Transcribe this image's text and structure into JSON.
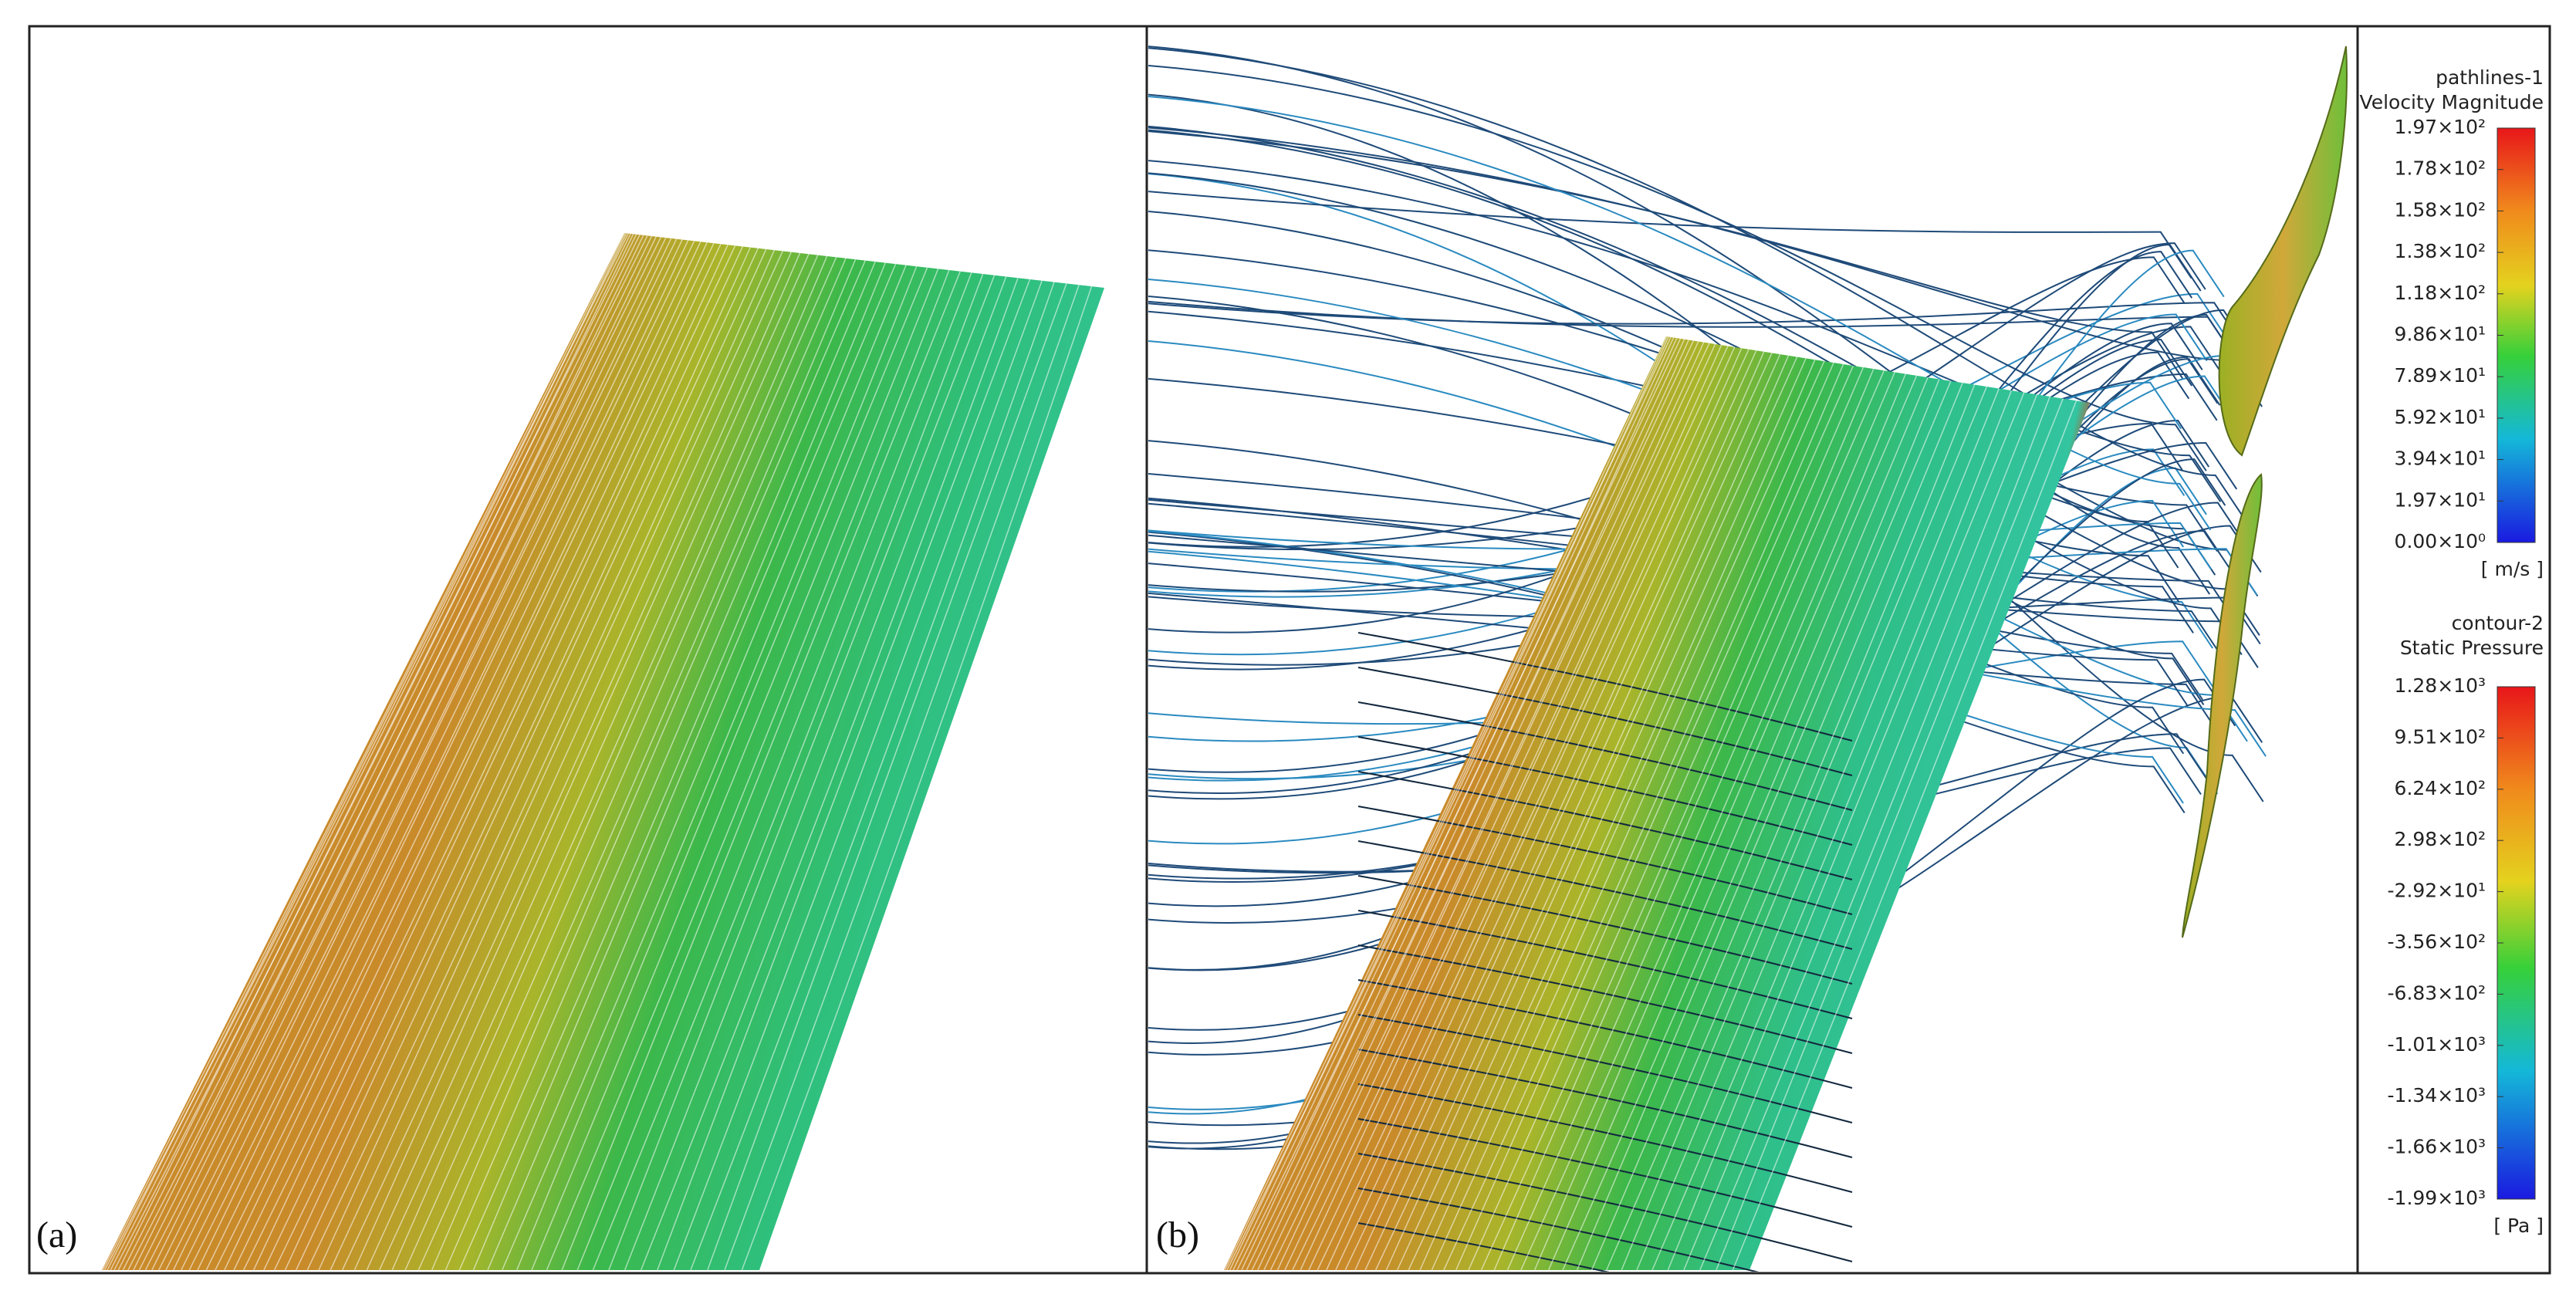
{
  "panels": [
    {
      "label": "(a)"
    },
    {
      "label": "(b)"
    }
  ],
  "legends": [
    {
      "title": [
        "pathlines-1",
        "Velocity Magnitude"
      ],
      "unit": "[ m/s ]",
      "ticks": [
        "1.97×10²",
        "1.78×10²",
        "1.58×10²",
        "1.38×10²",
        "1.18×10²",
        "9.86×10¹",
        "7.89×10¹",
        "5.92×10¹",
        "3.94×10¹",
        "1.97×10¹",
        "0.00×10⁰"
      ]
    },
    {
      "title": [
        "contour-2",
        "Static Pressure"
      ],
      "unit": "[ Pa ]",
      "ticks": [
        "1.28×10³",
        "9.51×10²",
        "6.24×10²",
        "2.98×10²",
        "-2.92×10¹",
        "-3.56×10²",
        "-6.83×10²",
        "-1.01×10³",
        "-1.34×10³",
        "-1.66×10³",
        "-1.99×10³"
      ]
    }
  ]
}
